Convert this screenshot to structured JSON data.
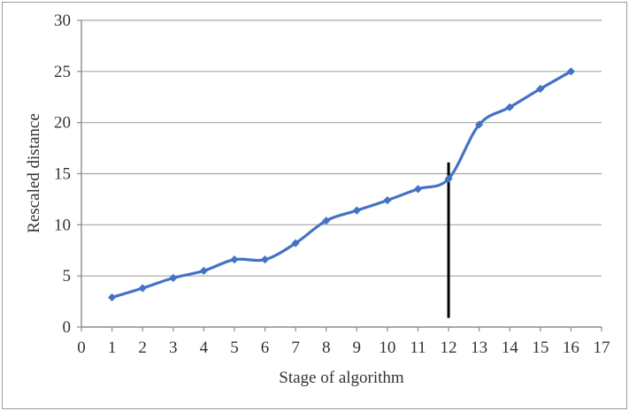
{
  "figure": {
    "background": "#ffffff",
    "border_color": "#9a9a9a"
  },
  "chart_data": {
    "type": "line",
    "title": "",
    "xlabel": "Stage of algorithm",
    "ylabel": "Rescaled distance",
    "x": [
      1,
      2,
      3,
      4,
      5,
      6,
      7,
      8,
      9,
      10,
      11,
      12,
      13,
      14,
      15,
      16
    ],
    "values": [
      2.9,
      3.8,
      4.8,
      5.5,
      6.6,
      6.6,
      8.2,
      10.4,
      11.4,
      12.4,
      13.5,
      14.5,
      19.8,
      21.5,
      23.3,
      25.0
    ],
    "xlim": [
      0,
      17
    ],
    "ylim": [
      0,
      30
    ],
    "x_ticks": [
      0,
      1,
      2,
      3,
      4,
      5,
      6,
      7,
      8,
      9,
      10,
      11,
      12,
      13,
      14,
      15,
      16,
      17
    ],
    "y_ticks": [
      0,
      5,
      10,
      15,
      20,
      25,
      30
    ],
    "grid": "horizontal",
    "legend": "none",
    "line_color": "#4472C4",
    "marker": "diamond",
    "line_smooth": true,
    "annotation_vline": {
      "x": 12,
      "y_start": 0.9,
      "y_end": 16.1,
      "color": "#000000"
    }
  },
  "styles": {
    "gridline_color": "#a6a6a6",
    "axis_color": "#8c8c8c",
    "text_color": "#333333"
  }
}
